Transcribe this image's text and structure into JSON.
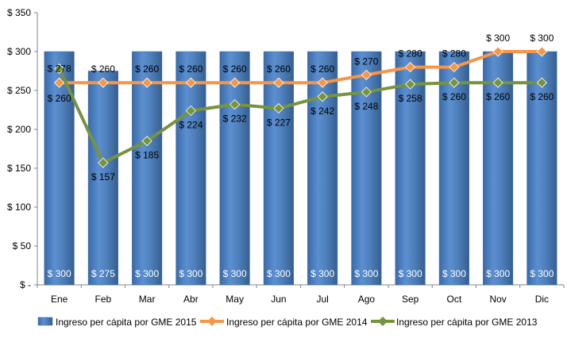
{
  "chart_data": {
    "type": "bar",
    "title": "",
    "xlabel": "",
    "ylabel": "",
    "ylim": [
      0,
      350
    ],
    "yticks": [
      0,
      50,
      100,
      150,
      200,
      250,
      300,
      350
    ],
    "ytick_labels": [
      "$ -",
      "$ 50",
      "$ 100",
      "$ 150",
      "$ 200",
      "$ 250",
      "$ 300",
      "$ 350"
    ],
    "grid": false,
    "legend_position": "bottom",
    "categories": [
      "Ene",
      "Feb",
      "Mar",
      "Abr",
      "May",
      "Jun",
      "Jul",
      "Ago",
      "Sep",
      "Oct",
      "Nov",
      "Dic"
    ],
    "series": [
      {
        "name": "Ingreso per cápita por GME 2015",
        "type": "bar",
        "color": "#4f81bd",
        "values": [
          300,
          275,
          300,
          300,
          300,
          300,
          300,
          300,
          300,
          300,
          300,
          300
        ],
        "labels": [
          "$ 300",
          "$ 275",
          "$ 300",
          "$ 300",
          "$ 300",
          "$ 300",
          "$ 300",
          "$ 300",
          "$ 300",
          "$ 300",
          "$ 300",
          "$ 300"
        ]
      },
      {
        "name": "Ingreso per cápita por GME 2014",
        "type": "line",
        "color": "#f79646",
        "marker": "diamond",
        "values": [
          260,
          260,
          260,
          260,
          260,
          260,
          260,
          270,
          280,
          280,
          300,
          300
        ],
        "labels": [
          "$ 260",
          "$ 260",
          "$ 260",
          "$ 260",
          "$ 260",
          "$ 260",
          "$ 260",
          "$ 270",
          "$ 280",
          "$ 280",
          "$ 300",
          "$ 300"
        ]
      },
      {
        "name": "Ingreso per cápita por GME 2013",
        "type": "line",
        "color": "#77933c",
        "marker": "diamond",
        "values": [
          278,
          157,
          185,
          224,
          232,
          227,
          242,
          248,
          258,
          260,
          260,
          260
        ],
        "labels": [
          "$ 278",
          "$ 157",
          "$ 185",
          "$ 224",
          "$ 232",
          "$ 227",
          "$ 242",
          "$ 248",
          "$ 258",
          "$ 260",
          "$ 260",
          "$ 260"
        ]
      }
    ]
  }
}
